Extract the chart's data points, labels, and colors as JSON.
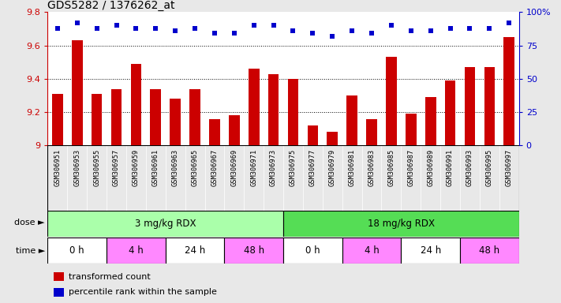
{
  "title": "GDS5282 / 1376262_at",
  "samples": [
    "GSM306951",
    "GSM306953",
    "GSM306955",
    "GSM306957",
    "GSM306959",
    "GSM306961",
    "GSM306963",
    "GSM306965",
    "GSM306967",
    "GSM306969",
    "GSM306971",
    "GSM306973",
    "GSM306975",
    "GSM306977",
    "GSM306979",
    "GSM306981",
    "GSM306983",
    "GSM306985",
    "GSM306987",
    "GSM306989",
    "GSM306991",
    "GSM306993",
    "GSM306995",
    "GSM306997"
  ],
  "transformed_count": [
    9.31,
    9.63,
    9.31,
    9.34,
    9.49,
    9.34,
    9.28,
    9.34,
    9.16,
    9.18,
    9.46,
    9.43,
    9.4,
    9.12,
    9.08,
    9.3,
    9.16,
    9.53,
    9.19,
    9.29,
    9.39,
    9.47,
    9.47,
    9.65
  ],
  "percentile_rank": [
    88,
    92,
    88,
    90,
    88,
    88,
    86,
    88,
    84,
    84,
    90,
    90,
    86,
    84,
    82,
    86,
    84,
    90,
    86,
    86,
    88,
    88,
    88,
    92
  ],
  "ymin": 9.0,
  "ymax": 9.8,
  "yticks_left": [
    9.0,
    9.2,
    9.4,
    9.6,
    9.8
  ],
  "ytick_labels_left": [
    "9",
    "9.2",
    "9.4",
    "9.6",
    "9.8"
  ],
  "yticks_right": [
    0,
    25,
    50,
    75,
    100
  ],
  "ytick_labels_right": [
    "0",
    "25",
    "50",
    "75",
    "100%"
  ],
  "bar_color": "#cc0000",
  "dot_color": "#0000cc",
  "dot_size": 22,
  "dose_groups": [
    {
      "label": "3 mg/kg RDX",
      "start": 0,
      "end": 12,
      "color": "#aaffaa"
    },
    {
      "label": "18 mg/kg RDX",
      "start": 12,
      "end": 24,
      "color": "#55dd55"
    }
  ],
  "time_groups": [
    {
      "label": "0 h",
      "start": 0,
      "end": 3,
      "color": "#ffffff"
    },
    {
      "label": "4 h",
      "start": 3,
      "end": 6,
      "color": "#ff88ff"
    },
    {
      "label": "24 h",
      "start": 6,
      "end": 9,
      "color": "#ffffff"
    },
    {
      "label": "48 h",
      "start": 9,
      "end": 12,
      "color": "#ff88ff"
    },
    {
      "label": "0 h",
      "start": 12,
      "end": 15,
      "color": "#ffffff"
    },
    {
      "label": "4 h",
      "start": 15,
      "end": 18,
      "color": "#ff88ff"
    },
    {
      "label": "24 h",
      "start": 18,
      "end": 21,
      "color": "#ffffff"
    },
    {
      "label": "48 h",
      "start": 21,
      "end": 24,
      "color": "#ff88ff"
    }
  ],
  "legend_items": [
    {
      "label": "transformed count",
      "color": "#cc0000"
    },
    {
      "label": "percentile rank within the sample",
      "color": "#0000cc"
    }
  ],
  "background_color": "#e8e8e8",
  "plot_bg_color": "#ffffff",
  "xtick_bg_color": "#d0d0d0",
  "title_fontsize": 10,
  "bar_width": 0.55,
  "left_color": "#cc0000",
  "right_color": "#0000cc"
}
